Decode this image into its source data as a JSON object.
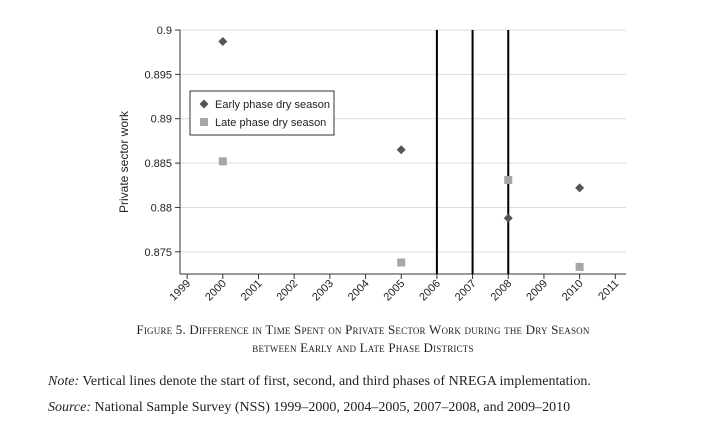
{
  "chart_data": {
    "type": "scatter",
    "ylabel": "Private sector work",
    "xlabel": "",
    "title": "",
    "xlim": [
      1998.8,
      2011.3
    ],
    "ylim": [
      0.8725,
      0.9
    ],
    "x_ticks": [
      "1999",
      "2000",
      "2001",
      "2002",
      "2003",
      "2004",
      "2005",
      "2006",
      "2007",
      "2008",
      "2009",
      "2010",
      "2011"
    ],
    "y_ticks": [
      "0.875",
      "0.88",
      "0.885",
      "0.89",
      "0.895",
      "0.9"
    ],
    "grid": "horizontal",
    "legend_position": "top-left",
    "vertical_lines": [
      2006,
      2007,
      2008
    ],
    "series": [
      {
        "name": "Early phase dry season",
        "marker": "diamond",
        "color": "#555555",
        "x": [
          2000,
          2005,
          2008,
          2010
        ],
        "y": [
          0.8987,
          0.8865,
          0.8788,
          0.8822
        ]
      },
      {
        "name": "Late phase dry season",
        "marker": "square",
        "color": "#a6a6a6",
        "x": [
          2000,
          2005,
          2008,
          2010
        ],
        "y": [
          0.8852,
          0.8738,
          0.8831,
          0.8733
        ]
      }
    ]
  },
  "caption": {
    "line1": "Figure 5. Difference in Time Spent on Private Sector Work during the Dry Season",
    "line2": "between Early and Late Phase Districts"
  },
  "note": {
    "label": "Note:",
    "text": " Vertical lines denote the start of first, second, and third phases of NREGA implementation."
  },
  "source": {
    "label": "Source:",
    "text": " National Sample Survey (NSS) 1999–2000, 2004–2005, 2007–2008, and 2009–2010"
  }
}
